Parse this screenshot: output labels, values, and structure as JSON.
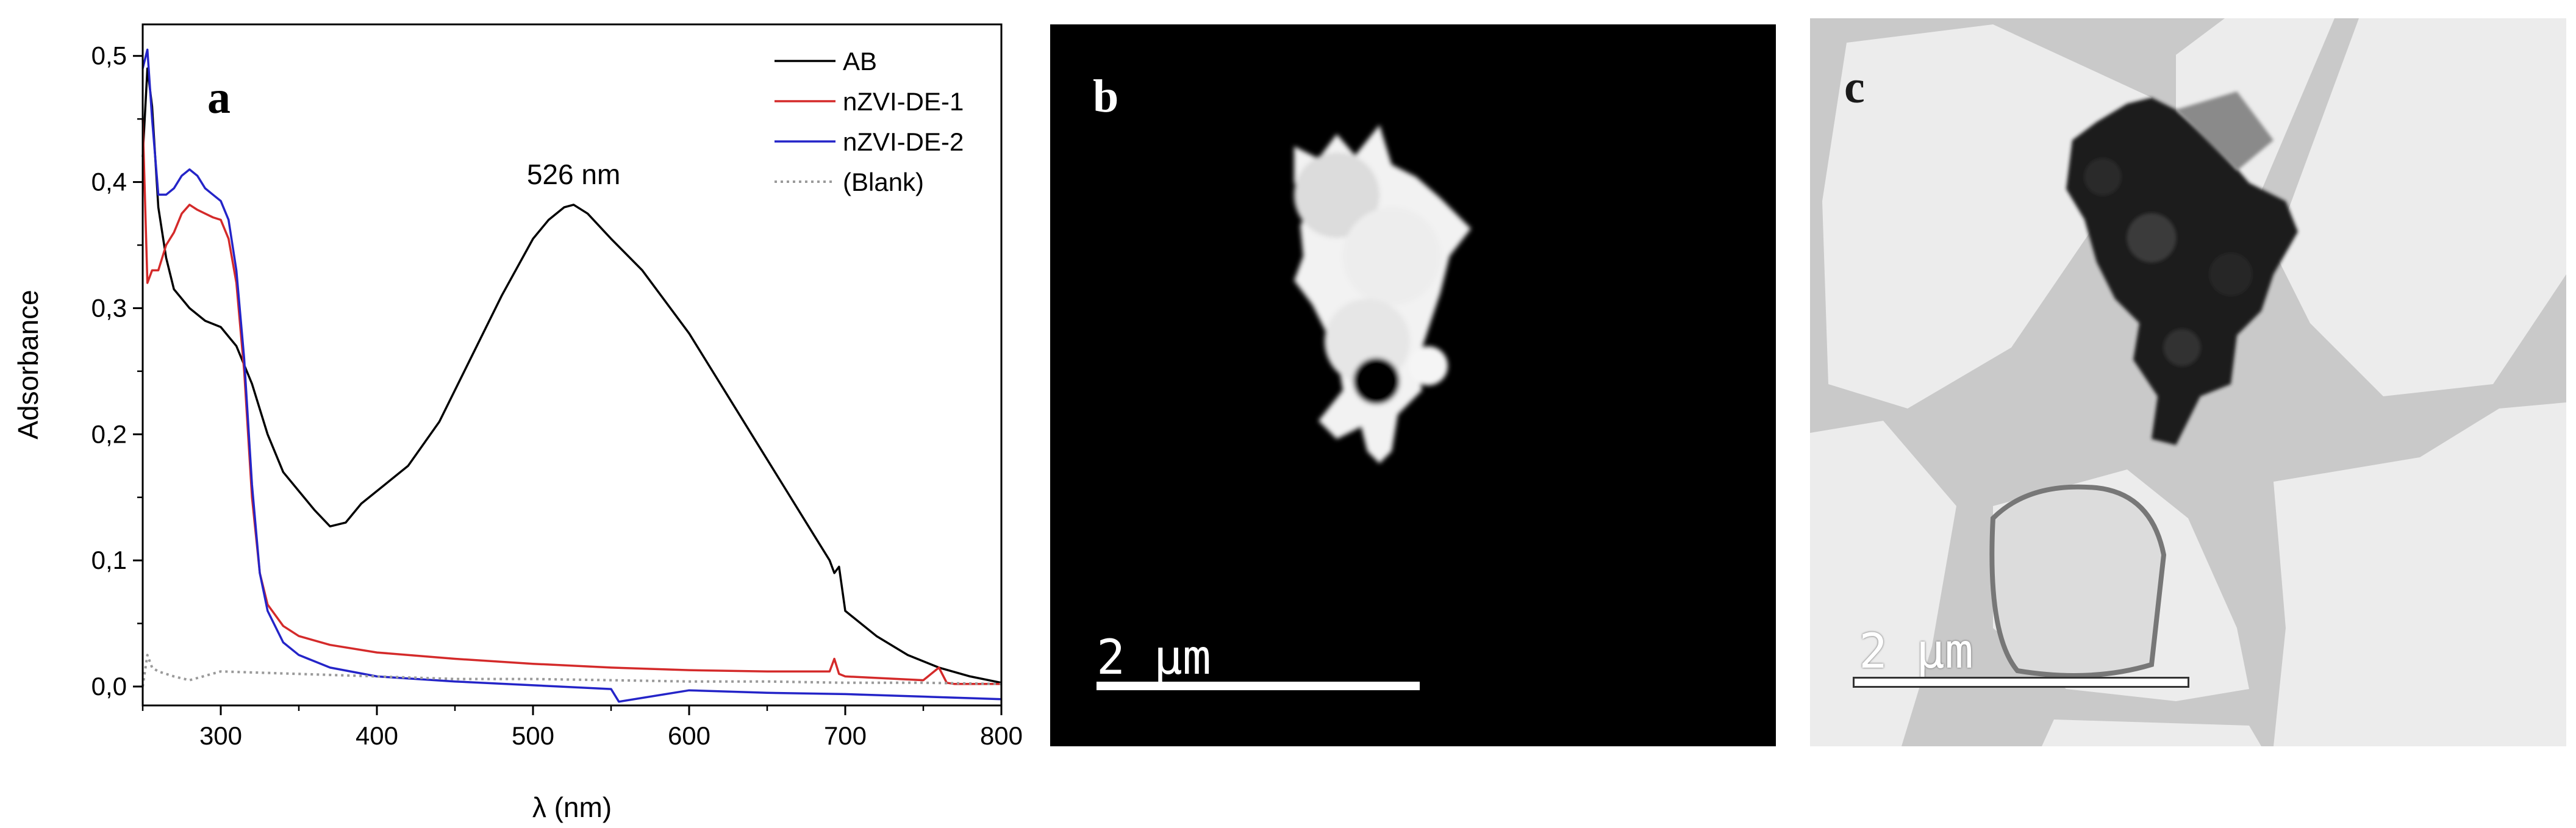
{
  "chart_data": {
    "type": "line",
    "panel_label": "a",
    "xlabel": "λ (nm)",
    "ylabel": "Adsorbance",
    "xlim": [
      250,
      800
    ],
    "ylim": [
      -0.015,
      0.525
    ],
    "x_ticks": [
      300,
      400,
      500,
      600,
      700,
      800
    ],
    "y_ticks": [
      0.0,
      0.1,
      0.2,
      0.3,
      0.4,
      0.5
    ],
    "y_tick_labels": [
      "0,0",
      "0,1",
      "0,2",
      "0,3",
      "0,4",
      "0,5"
    ],
    "x_tick_labels": [
      "300",
      "400",
      "500",
      "600",
      "700",
      "800"
    ],
    "grid": false,
    "legend_position": "top-right",
    "annotation": {
      "text": "526 nm",
      "x": 526,
      "y": 0.382
    },
    "series": [
      {
        "name": "AB",
        "color": "#000000",
        "style": "solid",
        "x": [
          250,
          253,
          256,
          260,
          265,
          270,
          280,
          290,
          300,
          310,
          320,
          330,
          340,
          350,
          360,
          370,
          380,
          390,
          400,
          420,
          440,
          460,
          480,
          500,
          510,
          520,
          526,
          535,
          550,
          570,
          600,
          620,
          640,
          660,
          680,
          690,
          693,
          696,
          700,
          720,
          740,
          760,
          780,
          800
        ],
        "y": [
          0.42,
          0.49,
          0.46,
          0.38,
          0.34,
          0.315,
          0.3,
          0.29,
          0.285,
          0.27,
          0.24,
          0.2,
          0.17,
          0.155,
          0.14,
          0.127,
          0.13,
          0.145,
          0.155,
          0.175,
          0.21,
          0.26,
          0.31,
          0.355,
          0.37,
          0.38,
          0.382,
          0.375,
          0.355,
          0.33,
          0.28,
          0.24,
          0.2,
          0.16,
          0.12,
          0.1,
          0.09,
          0.095,
          0.06,
          0.04,
          0.025,
          0.015,
          0.008,
          0.003
        ]
      },
      {
        "name": "nZVI-DE-1",
        "color": "#d42a2a",
        "style": "solid",
        "x": [
          250,
          253,
          256,
          260,
          265,
          270,
          275,
          280,
          285,
          290,
          295,
          300,
          305,
          310,
          315,
          320,
          325,
          330,
          340,
          350,
          370,
          400,
          450,
          500,
          550,
          600,
          650,
          690,
          693,
          696,
          700,
          750,
          760,
          765,
          770,
          800
        ],
        "y": [
          0.45,
          0.32,
          0.33,
          0.33,
          0.35,
          0.36,
          0.375,
          0.382,
          0.378,
          0.375,
          0.372,
          0.37,
          0.355,
          0.32,
          0.25,
          0.15,
          0.09,
          0.065,
          0.048,
          0.04,
          0.033,
          0.027,
          0.022,
          0.018,
          0.015,
          0.013,
          0.012,
          0.012,
          0.022,
          0.01,
          0.008,
          0.005,
          0.015,
          0.003,
          0.002,
          0.002
        ]
      },
      {
        "name": "nZVI-DE-2",
        "color": "#2424c8",
        "style": "solid",
        "x": [
          250,
          253,
          256,
          260,
          265,
          270,
          275,
          280,
          285,
          290,
          295,
          300,
          305,
          310,
          315,
          320,
          325,
          330,
          340,
          350,
          370,
          400,
          450,
          500,
          550,
          555,
          600,
          650,
          700,
          750,
          800
        ],
        "y": [
          0.49,
          0.505,
          0.45,
          0.39,
          0.39,
          0.395,
          0.405,
          0.41,
          0.405,
          0.395,
          0.39,
          0.385,
          0.37,
          0.33,
          0.26,
          0.16,
          0.09,
          0.06,
          0.035,
          0.025,
          0.015,
          0.008,
          0.004,
          0.001,
          -0.002,
          -0.012,
          -0.003,
          -0.005,
          -0.006,
          -0.008,
          -0.01
        ]
      },
      {
        "name": "(Blank)",
        "color": "#9a9a9a",
        "style": "dotted",
        "x": [
          250,
          253,
          256,
          260,
          270,
          280,
          300,
          350,
          400,
          450,
          500,
          550,
          600,
          650,
          700,
          750,
          800
        ],
        "y": [
          0.0,
          0.025,
          0.015,
          0.012,
          0.008,
          0.005,
          0.012,
          0.01,
          0.008,
          0.006,
          0.006,
          0.005,
          0.004,
          0.004,
          0.003,
          0.003,
          0.002
        ]
      }
    ]
  },
  "panels": {
    "b": {
      "label": "b",
      "scale_bar": "2  μm"
    },
    "c": {
      "label": "c",
      "scale_bar": "2  μm"
    }
  }
}
